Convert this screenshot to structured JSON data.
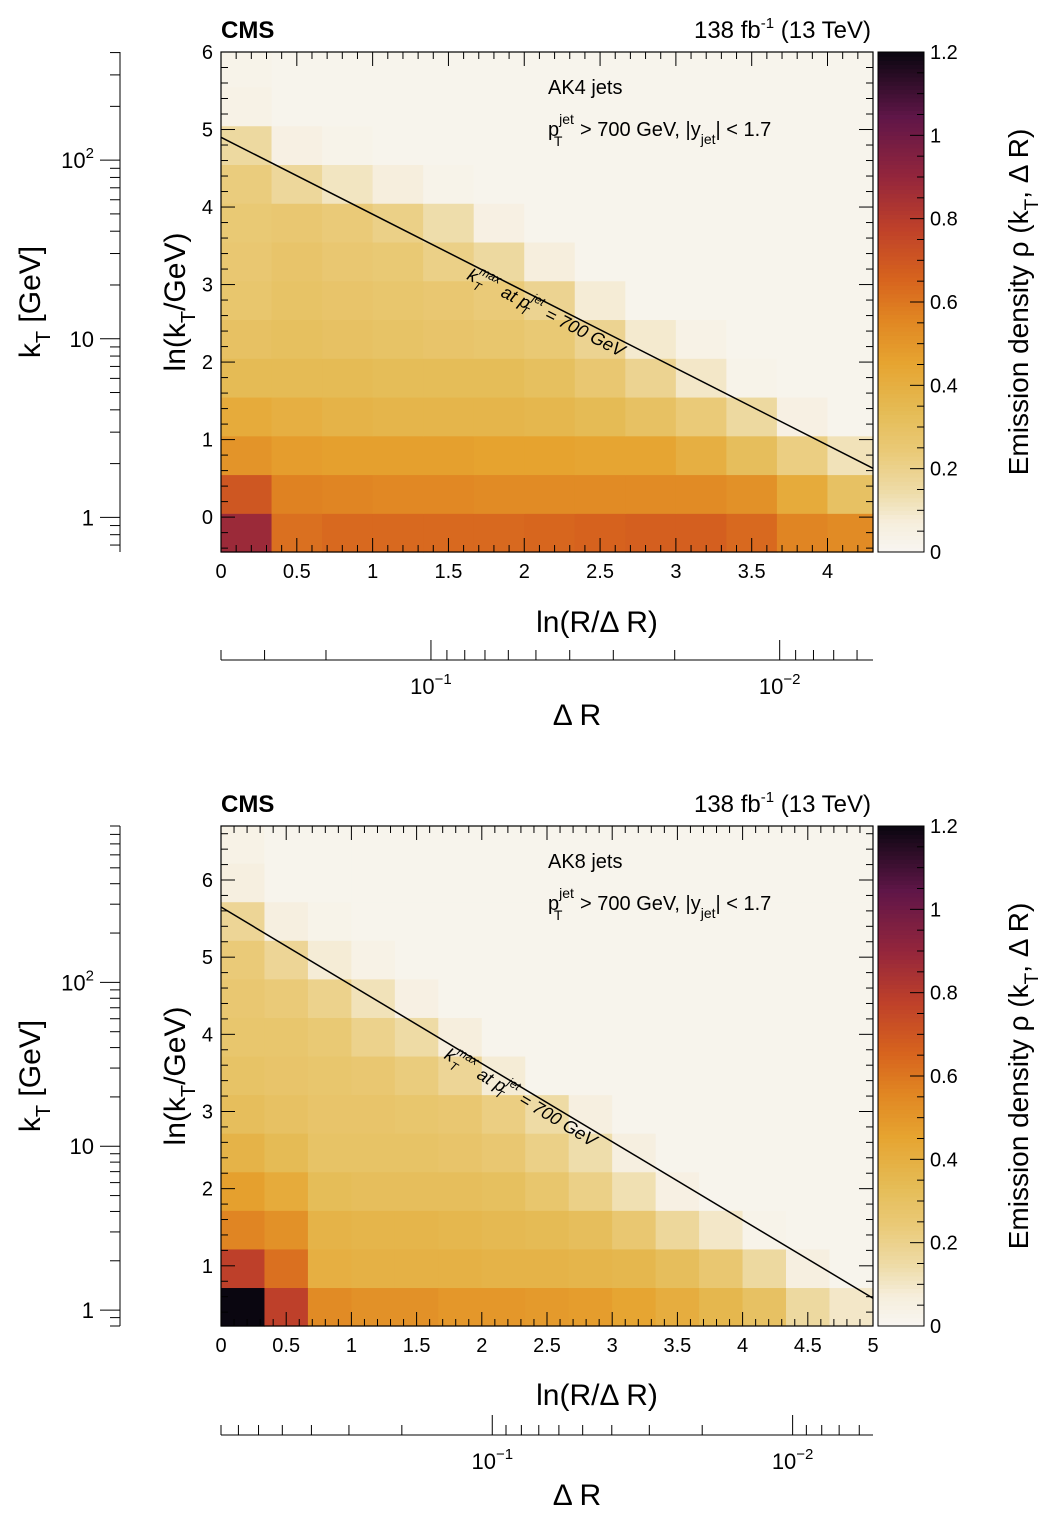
{
  "charts": [
    {
      "experiment": "CMS",
      "lumi": "138 fb",
      "lumi_sup": "-1",
      "energy": " (13 TeV)",
      "jet_label": "AK4 jets",
      "cut_label": {
        "p": "p",
        "p_sup": "jet",
        "p_sub": "T",
        "rest1": " > 700 GeV, |y",
        "y_sub": "jet",
        "rest2": "| < 1.7"
      },
      "line_label": {
        "k": "k",
        "k_sup": "max",
        "k_sub": "T",
        "mid": " at p",
        "p_sup": "jet",
        "p_sub": "T",
        "rest": " = 700 GeV"
      },
      "xlabel": {
        "main": "ln(R/Δ R)"
      },
      "ylabel": {
        "pre": "ln(k",
        "sub": "T",
        "post": "/GeV)"
      },
      "kt_label": {
        "pre": "k",
        "sub": "T",
        "post": " [GeV]"
      },
      "dr_label": "Δ R",
      "zlabel": {
        "pre": "Emission density ρ (k",
        "sub": "T",
        "post": ", Δ R)"
      },
      "x_ticks": [
        "0",
        "0.5",
        "1",
        "1.5",
        "2",
        "2.5",
        "3",
        "3.5",
        "4"
      ],
      "y_ticks": [
        "0",
        "1",
        "2",
        "3",
        "4",
        "5",
        "6"
      ],
      "z_ticks": [
        "0",
        "0.2",
        "0.4",
        "0.6",
        "0.8",
        "1",
        "1.2"
      ],
      "kt_ticks": [
        {
          "base": "1",
          "exp": ""
        },
        {
          "base": "10",
          "exp": ""
        },
        {
          "base": "10",
          "exp": "2"
        }
      ],
      "dr_ticks": [
        {
          "base": "10",
          "exp": "−1"
        },
        {
          "base": "10",
          "exp": "−2"
        }
      ]
    },
    {
      "experiment": "CMS",
      "lumi": "138 fb",
      "lumi_sup": "-1",
      "energy": " (13 TeV)",
      "jet_label": "AK8 jets",
      "cut_label": {
        "p": "p",
        "p_sup": "jet",
        "p_sub": "T",
        "rest1": " > 700 GeV, |y",
        "y_sub": "jet",
        "rest2": "| < 1.7"
      },
      "line_label": {
        "k": "k",
        "k_sup": "max",
        "k_sub": "T",
        "mid": " at p",
        "p_sup": "jet",
        "p_sub": "T",
        "rest": " = 700 GeV"
      },
      "xlabel": {
        "main": "ln(R/Δ R)"
      },
      "ylabel": {
        "pre": "ln(k",
        "sub": "T",
        "post": "/GeV)"
      },
      "kt_label": {
        "pre": "k",
        "sub": "T",
        "post": " [GeV]"
      },
      "dr_label": "Δ R",
      "zlabel": {
        "pre": "Emission density ρ (k",
        "sub": "T",
        "post": ", Δ R)"
      },
      "x_ticks": [
        "0",
        "0.5",
        "1",
        "1.5",
        "2",
        "2.5",
        "3",
        "3.5",
        "4",
        "4.5",
        "5"
      ],
      "y_ticks": [
        "1",
        "2",
        "3",
        "4",
        "5",
        "6"
      ],
      "z_ticks": [
        "0",
        "0.2",
        "0.4",
        "0.6",
        "0.8",
        "1",
        "1.2"
      ],
      "kt_ticks": [
        {
          "base": "1",
          "exp": ""
        },
        {
          "base": "10",
          "exp": ""
        },
        {
          "base": "10",
          "exp": "2"
        }
      ],
      "dr_ticks": [
        {
          "base": "10",
          "exp": "−1"
        },
        {
          "base": "10",
          "exp": "−2"
        }
      ]
    }
  ],
  "chart_data": [
    {
      "type": "heatmap",
      "x_edges_start": 0,
      "x_bin_width": 0.3333,
      "x_bins": 13,
      "xlim": [
        0,
        4.3
      ],
      "y_edges_start": -0.45,
      "y_bin_width": 0.5,
      "y_bins": 13,
      "ylim": [
        -0.45,
        6
      ],
      "zlim": [
        0,
        1.2
      ],
      "kt_axis_range_gev": [
        0.64,
        403
      ],
      "dr_axis_range": [
        0.4,
        0.0054
      ],
      "line": {
        "x": [
          0,
          4.3
        ],
        "y": [
          4.9,
          0.63
        ]
      },
      "z_rows_bottom_to_top": [
        [
          0.88,
          0.62,
          0.64,
          0.64,
          0.64,
          0.64,
          0.65,
          0.66,
          0.67,
          0.67,
          0.64,
          0.56,
          0.54
        ],
        [
          0.7,
          0.57,
          0.56,
          0.55,
          0.55,
          0.54,
          0.54,
          0.54,
          0.54,
          0.54,
          0.52,
          0.42,
          0.3
        ],
        [
          0.51,
          0.48,
          0.47,
          0.47,
          0.47,
          0.46,
          0.46,
          0.45,
          0.45,
          0.4,
          0.32,
          0.22,
          0.12
        ],
        [
          0.42,
          0.4,
          0.38,
          0.37,
          0.37,
          0.37,
          0.36,
          0.34,
          0.3,
          0.24,
          0.16,
          0.05,
          0.02
        ],
        [
          0.34,
          0.34,
          0.34,
          0.33,
          0.33,
          0.33,
          0.31,
          0.26,
          0.19,
          0.1,
          0.03,
          0.02,
          0.02
        ],
        [
          0.3,
          0.31,
          0.3,
          0.29,
          0.28,
          0.27,
          0.25,
          0.19,
          0.09,
          0.04,
          0.02,
          0.02,
          0.02
        ],
        [
          0.27,
          0.29,
          0.28,
          0.27,
          0.26,
          0.24,
          0.19,
          0.08,
          0.02,
          0.02,
          0.02,
          0.02,
          0.02
        ],
        [
          0.26,
          0.28,
          0.26,
          0.25,
          0.21,
          0.16,
          0.07,
          0.02,
          0.02,
          0.02,
          0.02,
          0.02,
          0.02
        ],
        [
          0.25,
          0.26,
          0.24,
          0.21,
          0.14,
          0.05,
          0.02,
          0.02,
          0.02,
          0.02,
          0.02,
          0.02,
          0.02
        ],
        [
          0.23,
          0.17,
          0.11,
          0.07,
          0.03,
          0.02,
          0.02,
          0.02,
          0.02,
          0.02,
          0.02,
          0.02,
          0.02
        ],
        [
          0.16,
          0.05,
          0.03,
          0.02,
          0.02,
          0.02,
          0.02,
          0.02,
          0.02,
          0.02,
          0.02,
          0.02,
          0.02
        ],
        [
          0.04,
          0.02,
          0.02,
          0.02,
          0.02,
          0.02,
          0.02,
          0.02,
          0.02,
          0.02,
          0.02,
          0.02,
          0.02
        ],
        [
          0.03,
          0.02,
          0.02,
          0.02,
          0.02,
          0.02,
          0.02,
          0.02,
          0.02,
          0.02,
          0.02,
          0.02,
          0.02
        ]
      ]
    },
    {
      "type": "heatmap",
      "x_edges_start": 0,
      "x_bin_width": 0.3333,
      "x_bins": 15,
      "xlim": [
        0,
        5
      ],
      "y_edges_start": 0.22,
      "y_bin_width": 0.5,
      "y_bins": 13,
      "ylim": [
        0.22,
        6.7
      ],
      "zlim": [
        0,
        1.2
      ],
      "kt_axis_range_gev": [
        0.8,
        900
      ],
      "dr_axis_range": [
        0.8,
        0.0054
      ],
      "line": {
        "x": [
          0,
          5
        ],
        "y": [
          5.65,
          0.58
        ]
      },
      "z_rows_bottom_to_top": [
        [
          1.2,
          0.78,
          0.54,
          0.52,
          0.52,
          0.5,
          0.5,
          0.49,
          0.48,
          0.45,
          0.41,
          0.36,
          0.3,
          0.16,
          0.1
        ],
        [
          0.78,
          0.62,
          0.4,
          0.39,
          0.39,
          0.39,
          0.38,
          0.38,
          0.37,
          0.36,
          0.32,
          0.26,
          0.16,
          0.06,
          0.02
        ],
        [
          0.56,
          0.52,
          0.38,
          0.37,
          0.37,
          0.36,
          0.35,
          0.34,
          0.32,
          0.26,
          0.17,
          0.1,
          0.03,
          0.02,
          0.02
        ],
        [
          0.47,
          0.42,
          0.33,
          0.32,
          0.32,
          0.32,
          0.31,
          0.27,
          0.21,
          0.13,
          0.05,
          0.02,
          0.02,
          0.02,
          0.02
        ],
        [
          0.38,
          0.34,
          0.29,
          0.29,
          0.29,
          0.28,
          0.26,
          0.21,
          0.14,
          0.06,
          0.02,
          0.02,
          0.02,
          0.02,
          0.02
        ],
        [
          0.32,
          0.3,
          0.28,
          0.28,
          0.27,
          0.26,
          0.22,
          0.15,
          0.06,
          0.02,
          0.02,
          0.02,
          0.02,
          0.02,
          0.02
        ],
        [
          0.29,
          0.28,
          0.27,
          0.26,
          0.23,
          0.18,
          0.08,
          0.02,
          0.02,
          0.02,
          0.02,
          0.02,
          0.02,
          0.02,
          0.02
        ],
        [
          0.27,
          0.27,
          0.25,
          0.2,
          0.15,
          0.07,
          0.02,
          0.02,
          0.02,
          0.02,
          0.02,
          0.02,
          0.02,
          0.02,
          0.02
        ],
        [
          0.26,
          0.24,
          0.2,
          0.12,
          0.05,
          0.02,
          0.02,
          0.02,
          0.02,
          0.02,
          0.02,
          0.02,
          0.02,
          0.02,
          0.02
        ],
        [
          0.24,
          0.18,
          0.08,
          0.04,
          0.02,
          0.02,
          0.02,
          0.02,
          0.02,
          0.02,
          0.02,
          0.02,
          0.02,
          0.02,
          0.02
        ],
        [
          0.18,
          0.06,
          0.03,
          0.02,
          0.02,
          0.02,
          0.02,
          0.02,
          0.02,
          0.02,
          0.02,
          0.02,
          0.02,
          0.02,
          0.02
        ],
        [
          0.06,
          0.02,
          0.02,
          0.02,
          0.02,
          0.02,
          0.02,
          0.02,
          0.02,
          0.02,
          0.02,
          0.02,
          0.02,
          0.02,
          0.02
        ],
        [
          0.04,
          0.02,
          0.02,
          0.02,
          0.02,
          0.02,
          0.02,
          0.02,
          0.02,
          0.02,
          0.02,
          0.02,
          0.02,
          0.02,
          0.02
        ]
      ]
    }
  ]
}
